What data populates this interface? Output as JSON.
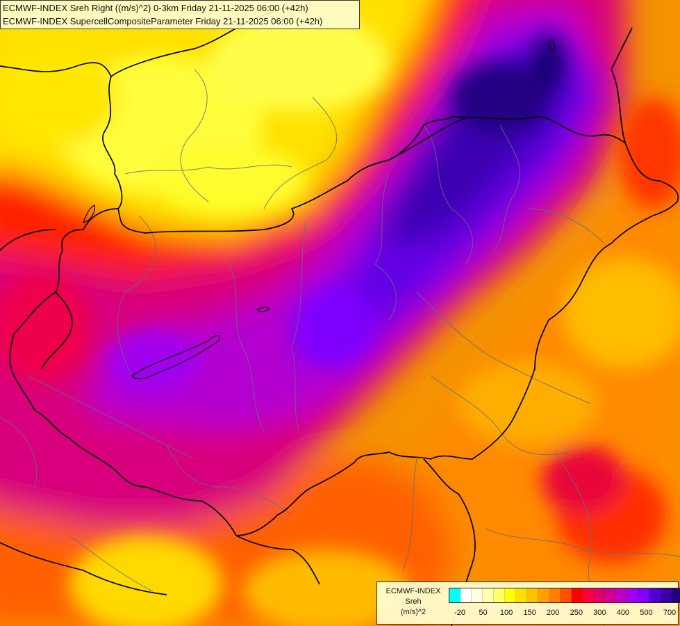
{
  "header": {
    "line1": "ECMWF-INDEX Sreh Right ((m/s)^2) 0-3km Friday 21-11-2025 06:00 (+42h)",
    "line2": "ECMWF-INDEX SupercellCompositeParameter Friday 21-11-2025 06:00 (+42h)"
  },
  "legend": {
    "line1": "ECMWF-INDEX",
    "line2": "Sreh",
    "line3": "(m/s)^2",
    "swatch_colors": [
      "#00ffff",
      "#ffffff",
      "#ffffe0",
      "#ffffaa",
      "#ffff66",
      "#ffff00",
      "#ffe000",
      "#ffc000",
      "#ffa000",
      "#ff8000",
      "#ff5000",
      "#ff0000",
      "#ff0040",
      "#e0006a",
      "#d00090",
      "#c000c0",
      "#a000f0",
      "#8000ff",
      "#5000d0",
      "#3a00a8",
      "#200080"
    ],
    "tick_labels": [
      "-20",
      "50",
      "100",
      "150",
      "200",
      "250",
      "300",
      "400",
      "500",
      "700"
    ]
  }
}
